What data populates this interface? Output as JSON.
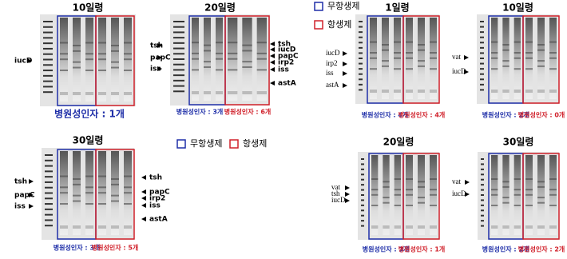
{
  "panels": [
    {
      "title": "10일령",
      "left_labels": [
        "iucD"
      ],
      "right_labels": [],
      "captions": [
        "병원성인자 : 1개"
      ]
    },
    {
      "title": "20일령",
      "left_labels": [
        "tsh",
        "papC",
        "iss"
      ],
      "right_labels": [
        "tsh",
        "iucD",
        "papC",
        "irp2",
        "iss",
        "astA"
      ],
      "captions": [
        "병원성인자 : 3개",
        "병원성인자 : 6개"
      ]
    },
    {
      "title": "30일령",
      "left_labels": [
        "tsh",
        "papC",
        "iss"
      ],
      "right_labels": [
        "tsh",
        "papC",
        "irp2",
        "iss",
        "astA"
      ],
      "captions": [
        "병원성인자 : 3개",
        "병원성인자 : 5개"
      ]
    },
    {
      "title": "1일령",
      "left_labels": [
        "iucD",
        "irp2",
        "iss",
        "astA"
      ],
      "right_labels": [],
      "captions": [
        "병원성인자 : 4개",
        "병원성인자 : 4개"
      ]
    },
    {
      "title": "10일령",
      "left_labels": [
        "vat",
        "iucD"
      ],
      "right_labels": [],
      "captions": [
        "병원성인자 : 2개",
        "병원성인자 : 0개"
      ]
    },
    {
      "title": "20일령",
      "left_labels": [
        "vat",
        "tsh",
        "iucD"
      ],
      "right_labels": [],
      "captions": [
        "병원성인자 : 3개",
        "병원성인자 : 1개"
      ]
    },
    {
      "title": "30일령",
      "left_labels": [
        "vat",
        "iucD"
      ],
      "right_labels": [],
      "captions": [
        "병원성인자 : 2개",
        "병원성인자 : 2개"
      ]
    }
  ],
  "legend_mid": [
    "무항생제",
    "항생제"
  ],
  "legend_right": [
    "무항생제",
    "항생제"
  ]
}
